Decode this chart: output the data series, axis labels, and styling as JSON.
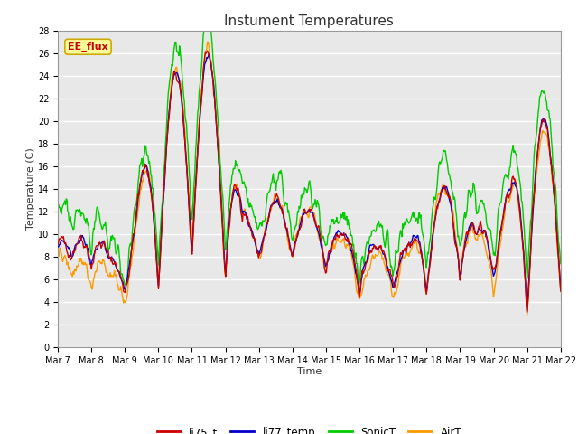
{
  "title": "Instument Temperatures",
  "xlabel": "Time",
  "ylabel": "Temperature (C)",
  "ylim": [
    0,
    28
  ],
  "yticks": [
    0,
    2,
    4,
    6,
    8,
    10,
    12,
    14,
    16,
    18,
    20,
    22,
    24,
    26,
    28
  ],
  "xtick_labels": [
    "Mar 7",
    "Mar 8",
    "Mar 9",
    "Mar 10",
    "Mar 11",
    "Mar 12",
    "Mar 13",
    "Mar 14",
    "Mar 15",
    "Mar 16",
    "Mar 17",
    "Mar 18",
    "Mar 19",
    "Mar 20",
    "Mar 21",
    "Mar 22"
  ],
  "colors": {
    "li75_t": "#cc0000",
    "li77_temp": "#0000cc",
    "SonicT": "#00cc00",
    "AirT": "#ff9900"
  },
  "line_width": 1.0,
  "annotation_text": "EE_flux",
  "annotation_color": "#cc0000",
  "annotation_bg": "#ffff99",
  "annotation_border": "#ccaa00",
  "plot_bg": "#e8e8e8",
  "grid_color": "#ffffff",
  "legend_entries": [
    "li75_t",
    "li77_temp",
    "SonicT",
    "AirT"
  ]
}
